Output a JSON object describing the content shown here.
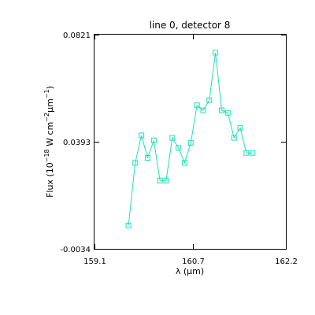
{
  "chart_data": {
    "type": "line",
    "title": "line 0, detector 8",
    "xlabel": {
      "prefix": "λ (",
      "mu": "μ",
      "unit": "m)"
    },
    "ylabel": {
      "prefix": "Flux (10",
      "exp1": "−18",
      "middle": " W cm",
      "exp2": "−2",
      "mu": "μ",
      "tail": "m",
      "exp3": "−1",
      "close": ")"
    },
    "xlim": [
      159.1,
      162.2
    ],
    "ylim": [
      -0.0034,
      0.0821
    ],
    "x_ticks": [
      {
        "value": 159.1,
        "label": "159.1"
      },
      {
        "value": 160.7,
        "label": "160.7"
      },
      {
        "value": 162.2,
        "label": "162.2"
      }
    ],
    "y_ticks": [
      {
        "value": -0.0034,
        "label": "-0.0034"
      },
      {
        "value": 0.0393,
        "label": "0.0393"
      },
      {
        "value": 0.0821,
        "label": "0.0821"
      }
    ],
    "marker": "square",
    "color": "#20e0b8",
    "series": [
      {
        "x": [
          159.65,
          159.76,
          159.86,
          159.96,
          160.06,
          160.16,
          160.26,
          160.36,
          160.46,
          160.56,
          160.66,
          160.76,
          160.86,
          160.96,
          161.06,
          161.16,
          161.26,
          161.36,
          161.46,
          161.56,
          161.66
        ],
        "y": [
          0.0059,
          0.0309,
          0.0419,
          0.0329,
          0.0399,
          0.0239,
          0.0239,
          0.0409,
          0.0369,
          0.0309,
          0.0389,
          0.0539,
          0.0519,
          0.0559,
          0.0749,
          0.0519,
          0.0509,
          0.0409,
          0.0449,
          0.0349,
          0.0349
        ]
      }
    ]
  }
}
